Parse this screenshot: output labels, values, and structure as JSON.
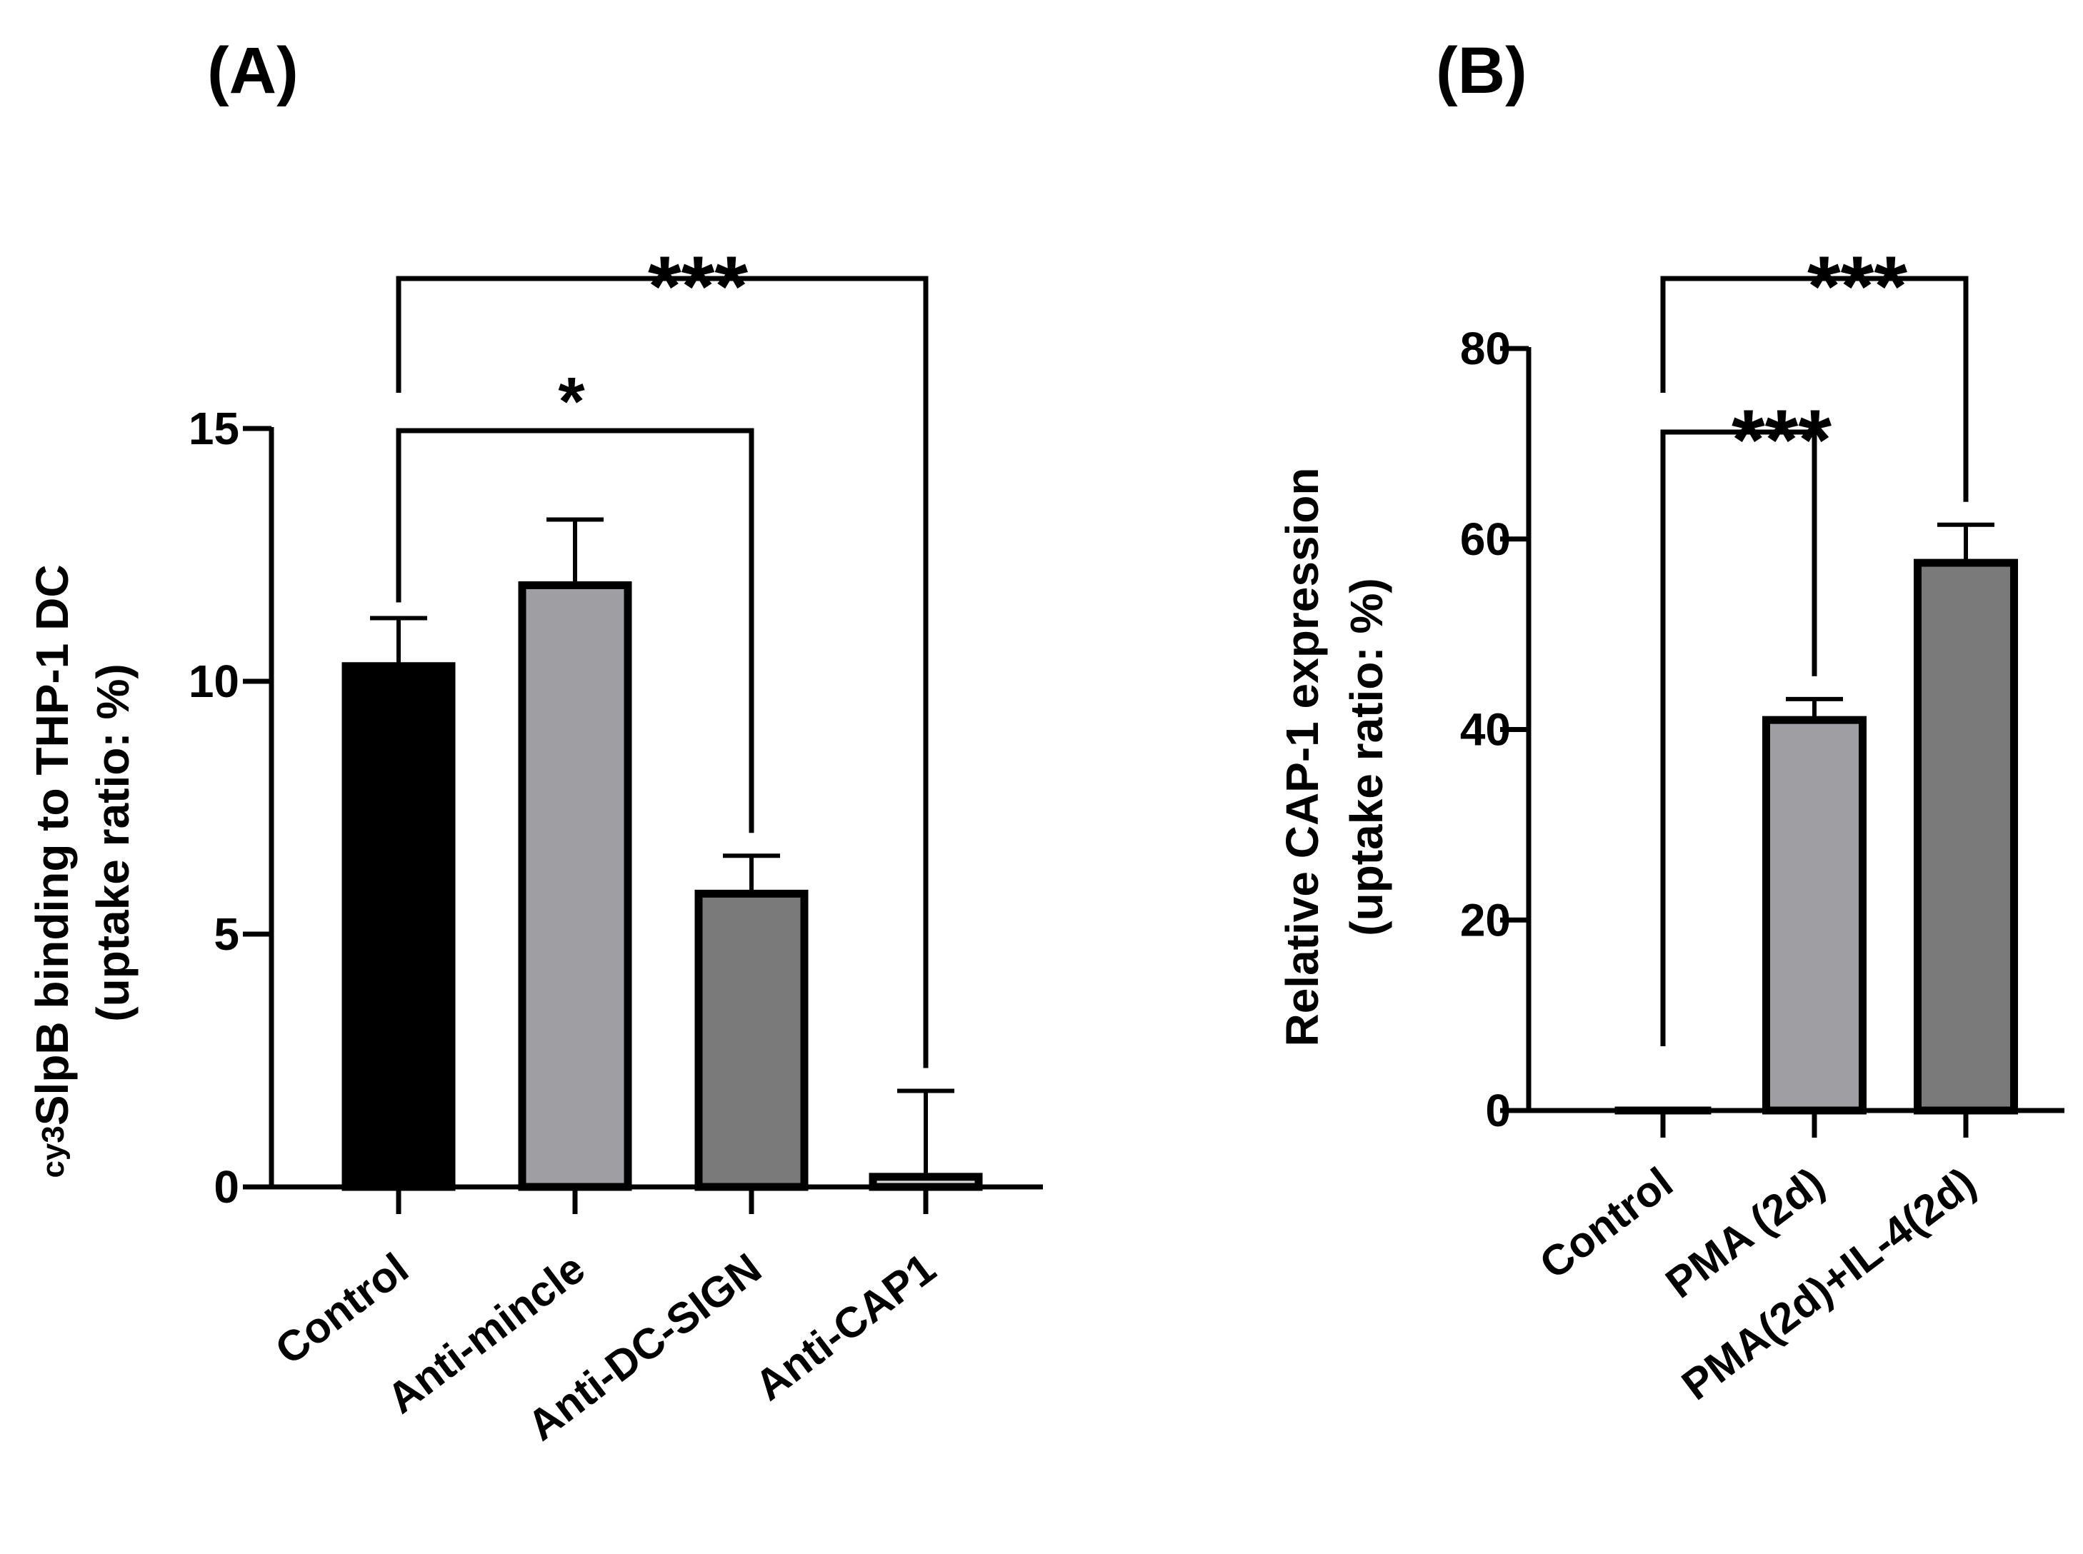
{
  "chart_data": [
    {
      "type": "bar",
      "panel_label": "(A)",
      "ylabel_prefix": "cy3",
      "ylabel_line1": "SlpB binding to THP-1 DC",
      "ylabel_line2": "(uptake ratio: %)",
      "xlabel": "",
      "ylim": [
        0,
        15
      ],
      "yticks": [
        0,
        5,
        10,
        15
      ],
      "categories": [
        "Control",
        "Anti-mincle",
        "Anti-DC-SIGN",
        "Anti-CAP1"
      ],
      "values": [
        10.3,
        11.9,
        5.8,
        0.2
      ],
      "errors": [
        0.95,
        1.3,
        0.75,
        1.7
      ],
      "colors": [
        "#000000",
        "#9f9fa3",
        "#7a7a7a",
        "#d9d9d9"
      ],
      "significance": [
        {
          "from": "Control",
          "to": "Anti-DC-SIGN",
          "label": "*"
        },
        {
          "from": "Control",
          "to": "Anti-CAP1",
          "label": "***"
        }
      ]
    },
    {
      "type": "bar",
      "panel_label": "(B)",
      "ylabel_line1": "Relative CAP-1 expression",
      "ylabel_line2": "(uptake ratio: %)",
      "xlabel": "",
      "ylim": [
        0,
        80
      ],
      "yticks": [
        0,
        20,
        40,
        60,
        80
      ],
      "categories": [
        "Control",
        "PMA (2d)",
        "PMA(2d)+IL-4(2d)"
      ],
      "values": [
        0,
        41,
        57.5
      ],
      "errors": [
        0,
        2.2,
        4.0
      ],
      "colors": [
        "#ffffff",
        "#9f9fa3",
        "#7a7a7a"
      ],
      "significance": [
        {
          "from": "Control",
          "to": "PMA (2d)",
          "label": "***"
        },
        {
          "from": "Control",
          "to": "PMA(2d)+IL-4(2d)",
          "label": "***"
        }
      ]
    }
  ]
}
